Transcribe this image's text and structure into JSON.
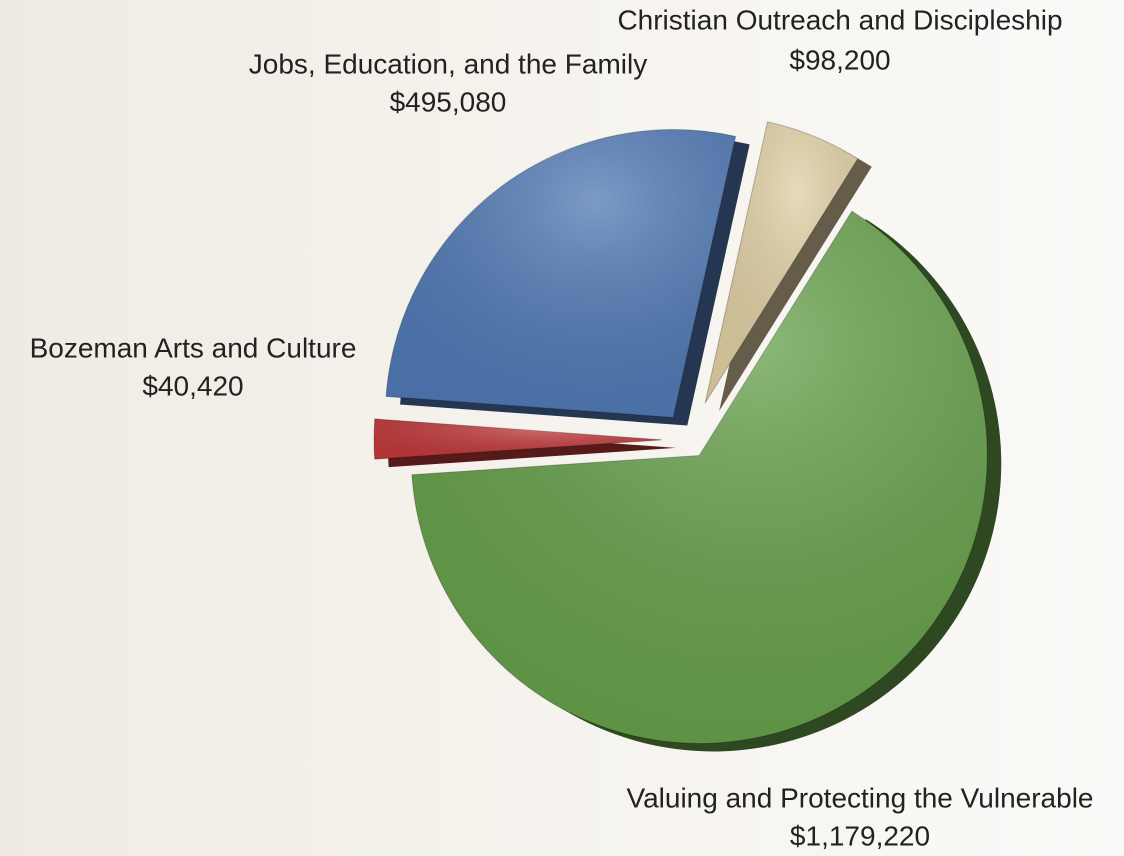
{
  "chart_data": {
    "type": "pie",
    "categories": [
      "Valuing and Protecting the Vulnerable",
      "Bozeman Arts and Culture",
      "Jobs, Education, and the Family",
      "Christian Outreach and Discipleship"
    ],
    "values": [
      1179220,
      40420,
      495080,
      98200
    ],
    "value_labels": [
      "$1,179,220",
      "$40,420",
      "$495,080",
      "$98,200"
    ],
    "colors": [
      "#66a04a",
      "#c0393b",
      "#5079b5",
      "#e0cfa3"
    ]
  }
}
